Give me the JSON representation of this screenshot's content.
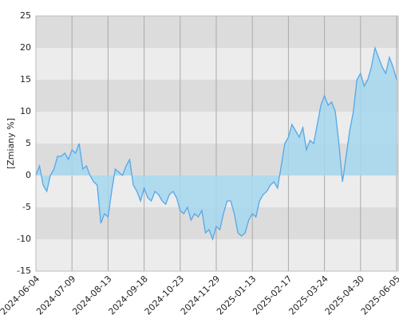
{
  "chart_data": {
    "type": "area-line",
    "y_label": "[Zmiany %]",
    "categories": [
      "2024-06-04",
      null,
      null,
      null,
      null,
      null,
      null,
      null,
      null,
      null,
      "2024-07-09",
      null,
      null,
      null,
      null,
      null,
      null,
      null,
      null,
      null,
      "2024-08-13",
      null,
      null,
      null,
      null,
      null,
      null,
      null,
      null,
      null,
      "2024-09-18",
      null,
      null,
      null,
      null,
      null,
      null,
      null,
      null,
      null,
      "2024-10-23",
      null,
      null,
      null,
      null,
      null,
      null,
      null,
      null,
      null,
      "2024-11-29",
      null,
      null,
      null,
      null,
      null,
      null,
      null,
      null,
      null,
      "2025-01-13",
      null,
      null,
      null,
      null,
      null,
      null,
      null,
      null,
      null,
      "2025-02-17",
      null,
      null,
      null,
      null,
      null,
      null,
      null,
      null,
      null,
      "2025-03-24",
      null,
      null,
      null,
      null,
      null,
      null,
      null,
      null,
      null,
      "2025-04-30",
      null,
      null,
      null,
      null,
      null,
      null,
      null,
      null,
      null,
      "2025-06-05"
    ],
    "series": [
      {
        "color": "#55a8e8",
        "fill": "#a6d7ef",
        "values": [
          0,
          1.5,
          -1.5,
          -2.5,
          0,
          1,
          3,
          3,
          3.5,
          2.5,
          4,
          3.5,
          5,
          1,
          1.5,
          0,
          -1,
          -1.5,
          -7.5,
          -6,
          -6.5,
          -2.5,
          1,
          0.5,
          0,
          1.5,
          2.5,
          -1.5,
          -2.5,
          -4,
          -2,
          -3.5,
          -4,
          -2.5,
          -3,
          -4,
          -4.5,
          -3,
          -2.5,
          -3.5,
          -5.5,
          -6,
          -5,
          -7,
          -6,
          -6.5,
          -5.5,
          -9,
          -8.5,
          -10,
          -8,
          -8.5,
          -6,
          -4,
          -4,
          -6,
          -9,
          -9.5,
          -9,
          -7,
          -6,
          -6.5,
          -4,
          -3,
          -2.5,
          -1.5,
          -1,
          -2,
          1.5,
          5,
          6,
          8,
          7,
          6,
          7.5,
          4,
          5.5,
          5,
          8,
          11,
          12.5,
          11,
          11.5,
          10,
          5,
          -1,
          3,
          7,
          10,
          15,
          16,
          14,
          15,
          17,
          20,
          18.5,
          17,
          16,
          18.5,
          17,
          15
        ]
      }
    ],
    "ylim": [
      -15,
      25
    ],
    "yticks": [
      -15,
      -10,
      -5,
      0,
      5,
      10,
      15,
      20,
      25
    ],
    "band_colors": [
      "#ececec",
      "#dcdcdc"
    ],
    "grid": true
  }
}
